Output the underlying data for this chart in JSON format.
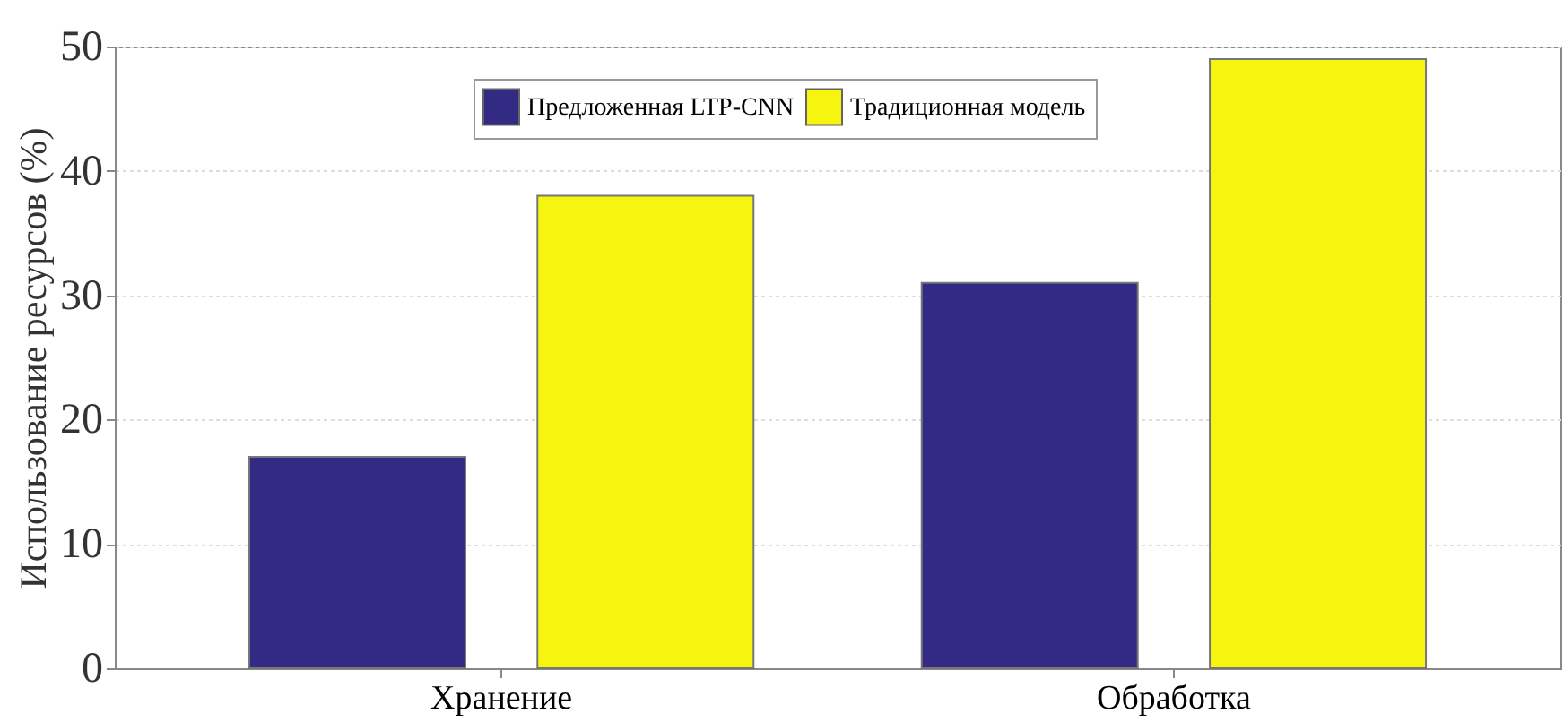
{
  "chart_data": {
    "type": "bar",
    "ylabel": "Использование ресурсов  (%)",
    "categories": [
      "Хранение",
      "Обработка"
    ],
    "series": [
      {
        "name": "Предложенная LTP-CNN",
        "color": "#332a84",
        "values": [
          17,
          31
        ]
      },
      {
        "name": "Традиционная модель",
        "color": "#f5f50f",
        "values": [
          38,
          49
        ]
      }
    ],
    "ylim": [
      0,
      50
    ],
    "yticks": [
      0,
      10,
      20,
      30,
      40,
      50
    ],
    "grid": "y",
    "legend": "top"
  }
}
